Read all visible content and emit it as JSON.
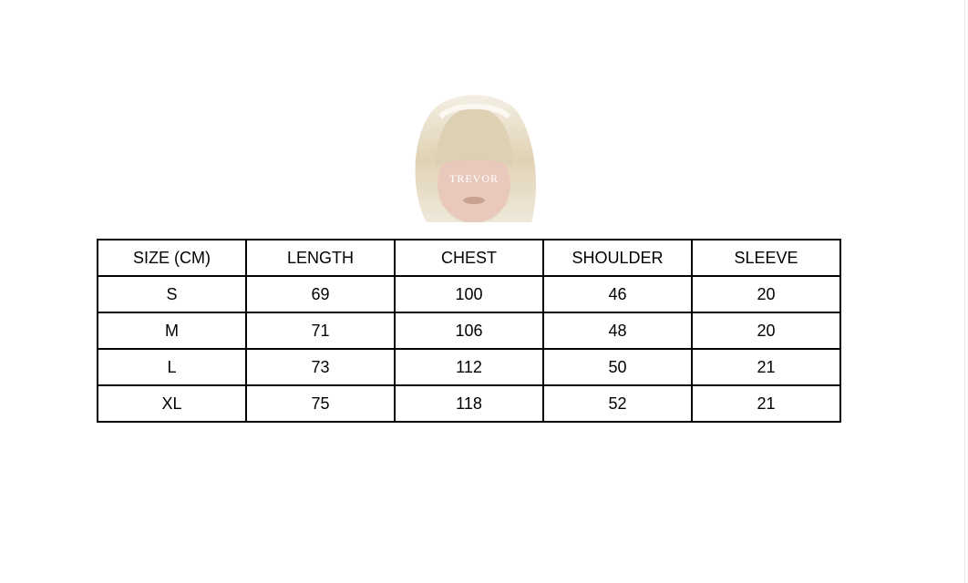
{
  "logo": {
    "text": "TREVOR"
  },
  "table": {
    "headers": [
      "SIZE (CM)",
      "LENGTH",
      "CHEST",
      "SHOULDER",
      "SLEEVE"
    ],
    "rows": [
      [
        "S",
        "69",
        "100",
        "46",
        "20"
      ],
      [
        "M",
        "71",
        "106",
        "48",
        "20"
      ],
      [
        "L",
        "73",
        "112",
        "50",
        "21"
      ],
      [
        "XL",
        "75",
        "118",
        "52",
        "21"
      ]
    ]
  }
}
